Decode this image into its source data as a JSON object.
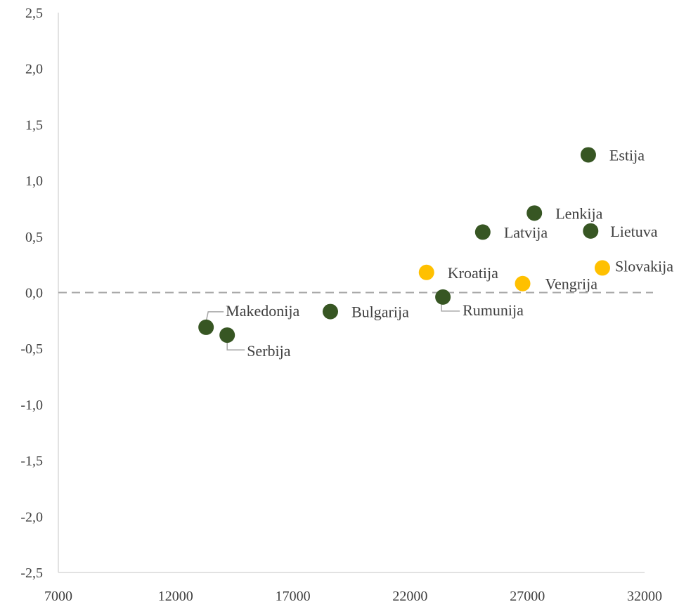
{
  "chart_data": {
    "type": "scatter",
    "title": "",
    "xlabel": "",
    "ylabel": "",
    "xlim": [
      7000,
      32000
    ],
    "ylim": [
      -2.5,
      2.5
    ],
    "x_ticks": [
      "7000",
      "12000",
      "17000",
      "22000",
      "27000",
      "32000"
    ],
    "y_ticks": [
      "2,5",
      "2,0",
      "1,5",
      "1,0",
      "0,5",
      "0,0",
      "-0,5",
      "-1,0",
      "-1,5",
      "-2,0",
      "-2,5"
    ],
    "x_tick_values": [
      7000,
      12000,
      17000,
      22000,
      27000,
      32000
    ],
    "y_tick_values": [
      2.5,
      2.0,
      1.5,
      1.0,
      0.5,
      0.0,
      -0.5,
      -1.0,
      -1.5,
      -2.0,
      -2.5
    ],
    "reference_line": {
      "y": 0,
      "style": "dashed",
      "color": "#a6a6a6"
    },
    "grid": false,
    "colors": {
      "green": "#375623",
      "yellow": "#ffc000",
      "axis": "#d9d9d9",
      "text": "#404040"
    },
    "points": [
      {
        "label": "Estija",
        "x": 29600,
        "y": 1.23,
        "color": "green"
      },
      {
        "label": "Lenkija",
        "x": 27300,
        "y": 0.71,
        "color": "green"
      },
      {
        "label": "Latvija",
        "x": 25100,
        "y": 0.54,
        "color": "green"
      },
      {
        "label": "Lietuva",
        "x": 29700,
        "y": 0.55,
        "color": "green"
      },
      {
        "label": "Kroatija",
        "x": 22700,
        "y": 0.18,
        "color": "yellow"
      },
      {
        "label": "Slovakija",
        "x": 30200,
        "y": 0.22,
        "color": "yellow"
      },
      {
        "label": "Vengrija",
        "x": 26800,
        "y": 0.08,
        "color": "yellow"
      },
      {
        "label": "Rumunija",
        "x": 23400,
        "y": -0.04,
        "color": "green"
      },
      {
        "label": "Bulgarija",
        "x": 18600,
        "y": -0.17,
        "color": "green"
      },
      {
        "label": "Makedonija",
        "x": 13300,
        "y": -0.31,
        "color": "green"
      },
      {
        "label": "Serbija",
        "x": 14200,
        "y": -0.38,
        "color": "green"
      }
    ]
  }
}
